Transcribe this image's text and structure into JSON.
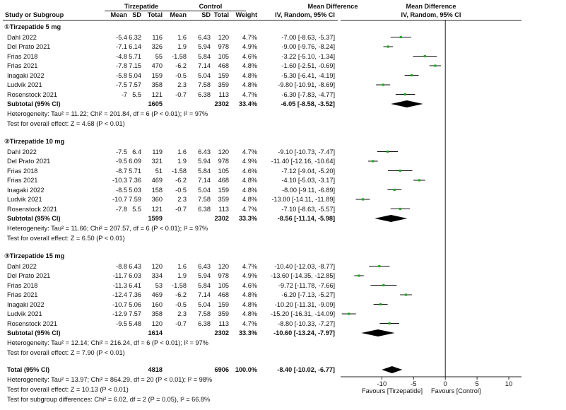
{
  "header": {
    "group_treatment": "Tirzepatide",
    "group_control": "Control",
    "study": "Study or Subgroup",
    "mean": "Mean",
    "sd": "SD",
    "total": "Total",
    "weight": "Weight",
    "md_title": "Mean Difference",
    "md_method": "IV, Random, 95% CI",
    "plot_title": "Mean Difference",
    "plot_method": "IV, Random, 95% CI"
  },
  "subgroups": [
    {
      "title": "①Tirzepatide 5 mg",
      "studies": [
        {
          "name": "Dahl 2022",
          "t_mean": "-5.4",
          "t_sd": "6.32",
          "t_n": "116",
          "c_mean": "1.6",
          "c_sd": "6.43",
          "c_n": "120",
          "weight": "4.7%",
          "ci_text": "-7.00 [-8.63, -5.37]"
        },
        {
          "name": "Del Prato 2021",
          "t_mean": "-7.1",
          "t_sd": "6.14",
          "t_n": "326",
          "c_mean": "1.9",
          "c_sd": "5.94",
          "c_n": "978",
          "weight": "4.9%",
          "ci_text": "-9.00 [-9.76, -8.24]"
        },
        {
          "name": "Frias 2018",
          "t_mean": "-4.8",
          "t_sd": "5.71",
          "t_n": "55",
          "c_mean": "-1.58",
          "c_sd": "5.84",
          "c_n": "105",
          "weight": "4.6%",
          "ci_text": "-3.22 [-5.10, -1.34]"
        },
        {
          "name": "Frias 2021",
          "t_mean": "-7.8",
          "t_sd": "7.15",
          "t_n": "470",
          "c_mean": "-6.2",
          "c_sd": "7.14",
          "c_n": "468",
          "weight": "4.8%",
          "ci_text": "-1.60 [-2.51, -0.69]"
        },
        {
          "name": "Inagaki 2022",
          "t_mean": "-5.8",
          "t_sd": "5.04",
          "t_n": "159",
          "c_mean": "-0.5",
          "c_sd": "5.04",
          "c_n": "159",
          "weight": "4.8%",
          "ci_text": "-5.30 [-6.41, -4.19]"
        },
        {
          "name": "Ludvik 2021",
          "t_mean": "-7.5",
          "t_sd": "7.57",
          "t_n": "358",
          "c_mean": "2.3",
          "c_sd": "7.58",
          "c_n": "359",
          "weight": "4.8%",
          "ci_text": "-9.80 [-10.91, -8.69]"
        },
        {
          "name": "Rosenstock 2021",
          "t_mean": "-7",
          "t_sd": "5.5",
          "t_n": "121",
          "c_mean": "-0.7",
          "c_sd": "6.38",
          "c_n": "113",
          "weight": "4.7%",
          "ci_text": "-6.30 [-7.83, -4.77]"
        }
      ],
      "subtotal": {
        "label": "Subtotal (95% CI)",
        "t_n": "1605",
        "c_n": "2302",
        "weight": "33.4%",
        "ci_text": "-6.05 [-8.58, -3.52]"
      },
      "heterogeneity": "Heterogeneity: Tau² = 11.22; Chi² = 201.84, df = 6 (P < 0.01); I² = 97%",
      "overall": "Test for overall effect: Z = 4.68 (P < 0.01)"
    },
    {
      "title": "②Tirzepatide 10 mg",
      "studies": [
        {
          "name": "Dahl 2022",
          "t_mean": "-7.5",
          "t_sd": "6.4",
          "t_n": "119",
          "c_mean": "1.6",
          "c_sd": "6.43",
          "c_n": "120",
          "weight": "4.7%",
          "ci_text": "-9.10 [-10.73, -7.47]"
        },
        {
          "name": "Del Prato 2021",
          "t_mean": "-9.5",
          "t_sd": "6.09",
          "t_n": "321",
          "c_mean": "1.9",
          "c_sd": "5.94",
          "c_n": "978",
          "weight": "4.9%",
          "ci_text": "-11.40 [-12.16, -10.64]"
        },
        {
          "name": "Frias 2018",
          "t_mean": "-8.7",
          "t_sd": "5.71",
          "t_n": "51",
          "c_mean": "-1.58",
          "c_sd": "5.84",
          "c_n": "105",
          "weight": "4.6%",
          "ci_text": "-7.12 [-9.04, -5.20]"
        },
        {
          "name": "Frias 2021",
          "t_mean": "-10.3",
          "t_sd": "7.36",
          "t_n": "469",
          "c_mean": "-6.2",
          "c_sd": "7.14",
          "c_n": "468",
          "weight": "4.8%",
          "ci_text": "-4.10 [-5.03, -3.17]"
        },
        {
          "name": "Inagaki 2022",
          "t_mean": "-8.5",
          "t_sd": "5.03",
          "t_n": "158",
          "c_mean": "-0.5",
          "c_sd": "5.04",
          "c_n": "159",
          "weight": "4.8%",
          "ci_text": "-8.00 [-9.11, -6.89]"
        },
        {
          "name": "Ludvik 2021",
          "t_mean": "-10.7",
          "t_sd": "7.59",
          "t_n": "360",
          "c_mean": "2.3",
          "c_sd": "7.58",
          "c_n": "359",
          "weight": "4.8%",
          "ci_text": "-13.00 [-14.11, -11.89]"
        },
        {
          "name": "Rosenstock 2021",
          "t_mean": "-7.8",
          "t_sd": "5.5",
          "t_n": "121",
          "c_mean": "-0.7",
          "c_sd": "6.38",
          "c_n": "113",
          "weight": "4.7%",
          "ci_text": "-7.10 [-8.63, -5.57]"
        }
      ],
      "subtotal": {
        "label": "Subtotal (95% CI)",
        "t_n": "1599",
        "c_n": "2302",
        "weight": "33.3%",
        "ci_text": "-8.56 [-11.14, -5.98]"
      },
      "heterogeneity": "Heterogeneity: Tau² = 11.66; Chi² = 207.57, df = 6 (P < 0.01); I² = 97%",
      "overall": "Test for overall effect: Z = 6.50 (P < 0.01)"
    },
    {
      "title": "③Tirzepatide 15 mg",
      "studies": [
        {
          "name": "Dahl 2022",
          "t_mean": "-8.8",
          "t_sd": "6.43",
          "t_n": "120",
          "c_mean": "1.6",
          "c_sd": "6.43",
          "c_n": "120",
          "weight": "4.7%",
          "ci_text": "-10.40 [-12.03, -8.77]"
        },
        {
          "name": "Del Prato 2021",
          "t_mean": "-11.7",
          "t_sd": "6.03",
          "t_n": "334",
          "c_mean": "1.9",
          "c_sd": "5.94",
          "c_n": "978",
          "weight": "4.9%",
          "ci_text": "-13.60 [-14.35, -12.85]"
        },
        {
          "name": "Frias 2018",
          "t_mean": "-11.3",
          "t_sd": "6.41",
          "t_n": "53",
          "c_mean": "-1.58",
          "c_sd": "5.84",
          "c_n": "105",
          "weight": "4.6%",
          "ci_text": "-9.72 [-11.78, -7.66]"
        },
        {
          "name": "Frias 2021",
          "t_mean": "-12.4",
          "t_sd": "7.36",
          "t_n": "469",
          "c_mean": "-6.2",
          "c_sd": "7.14",
          "c_n": "468",
          "weight": "4.8%",
          "ci_text": "-6.20 [-7.13, -5.27]"
        },
        {
          "name": "Inagaki 2022",
          "t_mean": "-10.7",
          "t_sd": "5.06",
          "t_n": "160",
          "c_mean": "-0.5",
          "c_sd": "5.04",
          "c_n": "159",
          "weight": "4.8%",
          "ci_text": "-10.20 [-11.31, -9.09]"
        },
        {
          "name": "Ludvik 2021",
          "t_mean": "-12.9",
          "t_sd": "7.57",
          "t_n": "358",
          "c_mean": "2.3",
          "c_sd": "7.58",
          "c_n": "359",
          "weight": "4.8%",
          "ci_text": "-15.20 [-16.31, -14.09]"
        },
        {
          "name": "Rosenstock 2021",
          "t_mean": "-9.5",
          "t_sd": "5.48",
          "t_n": "120",
          "c_mean": "-0.7",
          "c_sd": "6.38",
          "c_n": "113",
          "weight": "4.7%",
          "ci_text": "-8.80 [-10.33, -7.27]"
        }
      ],
      "subtotal": {
        "label": "Subtotal (95% CI)",
        "t_n": "1614",
        "c_n": "2302",
        "weight": "33.3%",
        "ci_text": "-10.60 [-13.24, -7.97]"
      },
      "heterogeneity": "Heterogeneity: Tau² = 12.14; Chi² = 216.24, df = 6 (P < 0.01); I² = 97%",
      "overall": "Test for overall effect: Z = 7.90 (P < 0.01)"
    }
  ],
  "total": {
    "label": "Total (95% CI)",
    "t_n": "4818",
    "c_n": "6906",
    "weight": "100.0%",
    "ci_text": "-8.40 [-10.02, -6.77]",
    "heterogeneity": "Heterogeneity: Tau² = 13.97; Chi² = 864.29, df = 20 (P < 0.01); I² = 98%",
    "overall": "Test for overall effect: Z = 10.13 (P < 0.01)",
    "subgroup_diff": "Test for subgroup differences: Chi² = 6.02, df = 2 (P = 0.05), I² = 66.8%"
  },
  "axis": {
    "ticks": [
      "-10",
      "-5",
      "0",
      "5",
      "10"
    ],
    "favours_left": "Favours [Tirzepatide]",
    "favours_right": "Favours [Control]"
  },
  "chart_data": {
    "type": "forest",
    "x_range": [
      -16.5,
      12
    ],
    "x_ticks": [
      -10,
      -5,
      0,
      5,
      10
    ],
    "reference_line": 0,
    "point_color": "#22aa22",
    "diamond_color": "#000000",
    "subgroups": [
      {
        "studies": [
          {
            "md": -7.0,
            "lo": -8.63,
            "hi": -5.37
          },
          {
            "md": -9.0,
            "lo": -9.76,
            "hi": -8.24
          },
          {
            "md": -3.22,
            "lo": -5.1,
            "hi": -1.34
          },
          {
            "md": -1.6,
            "lo": -2.51,
            "hi": -0.69
          },
          {
            "md": -5.3,
            "lo": -6.41,
            "hi": -4.19
          },
          {
            "md": -9.8,
            "lo": -10.91,
            "hi": -8.69
          },
          {
            "md": -6.3,
            "lo": -7.83,
            "hi": -4.77
          }
        ],
        "subtotal": {
          "md": -6.05,
          "lo": -8.58,
          "hi": -3.52
        }
      },
      {
        "studies": [
          {
            "md": -9.1,
            "lo": -10.73,
            "hi": -7.47
          },
          {
            "md": -11.4,
            "lo": -12.16,
            "hi": -10.64
          },
          {
            "md": -7.12,
            "lo": -9.04,
            "hi": -5.2
          },
          {
            "md": -4.1,
            "lo": -5.03,
            "hi": -3.17
          },
          {
            "md": -8.0,
            "lo": -9.11,
            "hi": -6.89
          },
          {
            "md": -13.0,
            "lo": -14.11,
            "hi": -11.89
          },
          {
            "md": -7.1,
            "lo": -8.63,
            "hi": -5.57
          }
        ],
        "subtotal": {
          "md": -8.56,
          "lo": -11.14,
          "hi": -5.98
        }
      },
      {
        "studies": [
          {
            "md": -10.4,
            "lo": -12.03,
            "hi": -8.77
          },
          {
            "md": -13.6,
            "lo": -14.35,
            "hi": -12.85
          },
          {
            "md": -9.72,
            "lo": -11.78,
            "hi": -7.66
          },
          {
            "md": -6.2,
            "lo": -7.13,
            "hi": -5.27
          },
          {
            "md": -10.2,
            "lo": -11.31,
            "hi": -9.09
          },
          {
            "md": -15.2,
            "lo": -16.31,
            "hi": -14.09
          },
          {
            "md": -8.8,
            "lo": -10.33,
            "hi": -7.27
          }
        ],
        "subtotal": {
          "md": -10.6,
          "lo": -13.24,
          "hi": -7.97
        }
      }
    ],
    "total": {
      "md": -8.4,
      "lo": -10.02,
      "hi": -6.77
    }
  }
}
